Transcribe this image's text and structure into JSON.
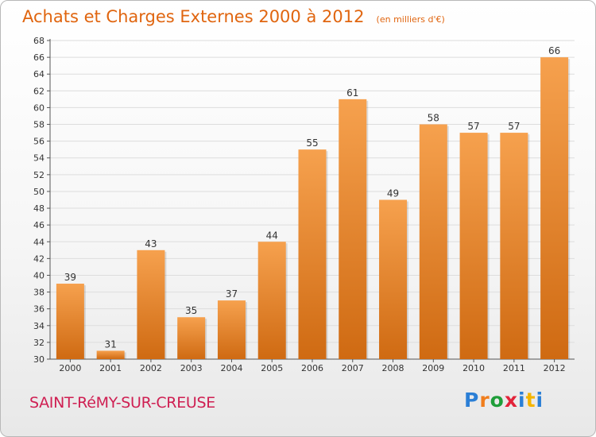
{
  "header": {
    "title": "Achats et Charges Externes 2000 à 2012",
    "subtitle": "(en milliers d'€)"
  },
  "footer": {
    "place": "SAINT-RéMY-SUR-CREUSE",
    "brand": "Proxiti",
    "brand_colors": [
      "#2b7fd6",
      "#f07d1c",
      "#1f9e3a",
      "#e2233a",
      "#2b7fd6",
      "#f4b400",
      "#2b7fd6"
    ]
  },
  "colors": {
    "bar_light": "#f6a14e",
    "bar_dark": "#cf6a12",
    "axis_text": "#333333",
    "grid": "#dddddd",
    "title": "#e0650f",
    "place": "#cf1f52"
  },
  "chart_data": {
    "type": "bar",
    "title": "Achats et Charges Externes 2000 à 2012",
    "subtitle": "(en milliers d'€)",
    "xlabel": "",
    "ylabel": "",
    "categories": [
      "2000",
      "2001",
      "2002",
      "2003",
      "2004",
      "2005",
      "2006",
      "2007",
      "2008",
      "2009",
      "2010",
      "2011",
      "2012"
    ],
    "values": [
      39,
      31,
      43,
      35,
      37,
      44,
      55,
      61,
      49,
      58,
      57,
      57,
      66
    ],
    "ylim": [
      30,
      68
    ],
    "ytick_step": 2,
    "grid": true,
    "legend": "none",
    "data_labels": true
  }
}
